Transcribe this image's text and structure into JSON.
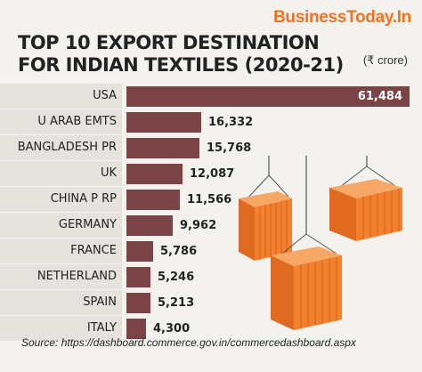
{
  "brand": "BusinessToday.In",
  "title_line1": "TOP 10 EXPORT DESTINATION",
  "title_line2": "FOR INDIAN TEXTILES (2020-21)",
  "unit": "(₹ crore)",
  "source": "Source: https://dashboard.commerce.gov.in/commercedashboard.aspx",
  "colors": {
    "bar": "#7a4447",
    "label_bg": "#e6e2dd",
    "brand": "#f0731f",
    "container": "#f2802f"
  },
  "chart_data": {
    "type": "bar",
    "orientation": "horizontal",
    "categories": [
      "USA",
      "U ARAB EMTS",
      "BANGLADESH PR",
      "UK",
      "CHINA P RP",
      "GERMANY",
      "FRANCE",
      "NETHERLAND",
      "SPAIN",
      "ITALY"
    ],
    "values": [
      61484,
      16332,
      15768,
      12087,
      11566,
      9962,
      5786,
      5246,
      5213,
      4300
    ],
    "value_labels": [
      "61,484",
      "16,332",
      "15,768",
      "12,087",
      "11,566",
      "9,962",
      "5,786",
      "5,246",
      "5,213",
      "4,300"
    ],
    "xlim": [
      0,
      61484
    ]
  }
}
